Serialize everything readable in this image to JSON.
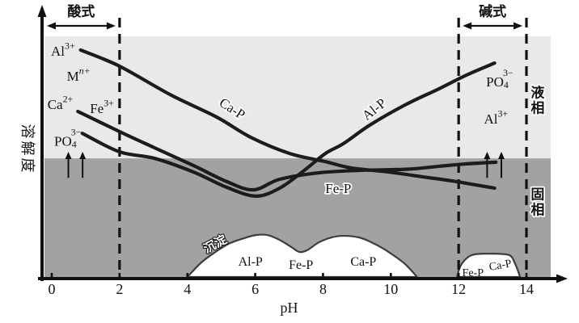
{
  "figure": {
    "description": "Solubility of phosphate compounds (Ca-P, Al-P, Fe-P) versus pH, showing liquid phase, solid phase and precipitation regions"
  },
  "axes": {
    "x_label": "pH",
    "y_label": "溶解度",
    "x_ticks": [
      0,
      2,
      4,
      6,
      8,
      10,
      12,
      14
    ]
  },
  "zones": {
    "acid_label": "酸式",
    "base_label": "碱式",
    "liquid_phase_label": "液相",
    "solid_phase_label": "固相",
    "precipitate_label": "沉淀"
  },
  "chart_data": {
    "type": "line",
    "xlabel": "pH",
    "ylabel": "溶解度 (relative solubility, arbitrary units 0–100)",
    "x_range": [
      0,
      14
    ],
    "x_ticks": [
      0,
      2,
      4,
      6,
      8,
      10,
      12,
      14
    ],
    "grid": false,
    "legend_position": "labels-on-curves",
    "phase_boundary_solubility": 49.3,
    "dashed_guides_ph": [
      2,
      12,
      14
    ],
    "series": [
      {
        "name": "Ca-P",
        "points": [
          [
            0.85,
            94.3
          ],
          [
            2.0,
            87.6
          ],
          [
            3.49,
            75.8
          ],
          [
            4.87,
            66.4
          ],
          [
            5.86,
            58.1
          ],
          [
            7.02,
            51.3
          ],
          [
            8.05,
            48.0
          ],
          [
            8.83,
            45.3
          ],
          [
            9.95,
            43.6
          ],
          [
            10.95,
            41.6
          ],
          [
            11.81,
            39.9
          ],
          [
            13.06,
            36.9
          ]
        ]
      },
      {
        "name": "Al-P",
        "points": [
          [
            0.9,
            59.7
          ],
          [
            2.0,
            52.0
          ],
          [
            3.03,
            49.3
          ],
          [
            4.18,
            43.6
          ],
          [
            5.17,
            37.2
          ],
          [
            6.02,
            33.6
          ],
          [
            6.72,
            36.9
          ],
          [
            7.42,
            44.0
          ],
          [
            8.07,
            51.3
          ],
          [
            8.6,
            55.4
          ],
          [
            9.38,
            63.1
          ],
          [
            10.42,
            71.5
          ],
          [
            11.42,
            78.2
          ],
          [
            12.23,
            83.9
          ],
          [
            13.06,
            88.9
          ]
        ]
      },
      {
        "name": "Fe-P",
        "points": [
          [
            0.77,
            68.8
          ],
          [
            2.0,
            60.4
          ],
          [
            3.03,
            53.7
          ],
          [
            4.18,
            46.3
          ],
          [
            5.17,
            39.6
          ],
          [
            5.95,
            36.2
          ],
          [
            6.72,
            40.6
          ],
          [
            7.88,
            43.3
          ],
          [
            9.07,
            44.3
          ],
          [
            10.49,
            44.8
          ],
          [
            11.42,
            46.0
          ],
          [
            12.23,
            47.0
          ],
          [
            13.1,
            47.7
          ]
        ]
      }
    ],
    "precipitate_regions": [
      {
        "label": "Al-P / Fe-P / Ca-P precipitate mound, pH 4–10.8",
        "points": [
          [
            4.0,
            0
          ],
          [
            4.41,
            6.0
          ],
          [
            4.83,
            10.4
          ],
          [
            5.22,
            13.8
          ],
          [
            5.67,
            16.1
          ],
          [
            6.02,
            17.4
          ],
          [
            6.37,
            17.4
          ],
          [
            6.72,
            15.4
          ],
          [
            7.07,
            12.4
          ],
          [
            7.3,
            10.4
          ],
          [
            7.53,
            11.1
          ],
          [
            7.88,
            14.4
          ],
          [
            8.24,
            16.4
          ],
          [
            8.6,
            17.1
          ],
          [
            9.07,
            16.4
          ],
          [
            9.43,
            14.4
          ],
          [
            9.79,
            11.7
          ],
          [
            10.14,
            8.4
          ],
          [
            10.42,
            5.4
          ],
          [
            10.65,
            2.0
          ],
          [
            10.77,
            0
          ]
        ]
      },
      {
        "label": "Fe-P / Ca-P precipitate mound, pH 12–13.8",
        "points": [
          [
            11.95,
            0
          ],
          [
            12.05,
            4.4
          ],
          [
            12.23,
            7.7
          ],
          [
            12.47,
            9.4
          ],
          [
            12.93,
            9.7
          ],
          [
            13.4,
            9.4
          ],
          [
            13.56,
            8.4
          ],
          [
            13.65,
            6.0
          ],
          [
            13.74,
            3.0
          ],
          [
            13.81,
            0
          ]
        ]
      }
    ],
    "up_arrows": {
      "ph": [
        0.49,
        0.91,
        12.84,
        13.26
      ],
      "s_from": 41.2,
      "s_to": 52.0
    }
  },
  "labels": [
    {
      "name": "ion-al3-left",
      "parts": [
        [
          "Al",
          ""
        ],
        [
          "3+",
          "sup"
        ]
      ],
      "ph": 0.33,
      "s": 94.0,
      "size": 17
    },
    {
      "name": "ion-mn-left",
      "parts": [
        [
          "M",
          ""
        ],
        [
          "n+",
          "supi"
        ]
      ],
      "ph": 0.79,
      "s": 83.6,
      "size": 17
    },
    {
      "name": "ion-ca2-left",
      "parts": [
        [
          "Ca",
          ""
        ],
        [
          "2+",
          "sup"
        ]
      ],
      "ph": 0.25,
      "s": 71.8,
      "size": 17
    },
    {
      "name": "ion-fe3-left",
      "parts": [
        [
          "Fe",
          ""
        ],
        [
          "3+",
          "sup"
        ]
      ],
      "ph": 1.48,
      "s": 70.1,
      "size": 17
    },
    {
      "name": "ion-po4-left",
      "parts": [
        [
          "PO",
          ""
        ],
        [
          "4",
          "sub"
        ],
        [
          "3−",
          "supover"
        ]
      ],
      "ph": 0.47,
      "s": 56.5,
      "size": 17
    },
    {
      "name": "curve-label-ca-p",
      "parts": [
        [
          "Ca-P",
          ""
        ]
      ],
      "ph": 5.33,
      "s": 70.1,
      "rot": 33,
      "size": 17,
      "cls": "halo"
    },
    {
      "name": "curve-label-al-p",
      "parts": [
        [
          "Al-P",
          ""
        ]
      ],
      "ph": 9.5,
      "s": 69.8,
      "rot": -38,
      "size": 17,
      "cls": "halo"
    },
    {
      "name": "curve-label-fe-p",
      "parts": [
        [
          "Fe-P",
          ""
        ]
      ],
      "ph": 8.45,
      "s": 36.9,
      "rot": 0,
      "size": 17,
      "cls": "halo"
    },
    {
      "name": "ion-po4-right",
      "parts": [
        [
          "PO",
          ""
        ],
        [
          "4",
          "sub"
        ],
        [
          "3−",
          "supover"
        ]
      ],
      "ph": 13.21,
      "s": 81.2,
      "size": 17
    },
    {
      "name": "ion-al3-right",
      "parts": [
        [
          "Al",
          ""
        ],
        [
          "3+",
          "sup"
        ]
      ],
      "ph": 13.1,
      "s": 65.8,
      "size": 17
    },
    {
      "name": "precipitate-label",
      "parts": [
        [
          "沉淀",
          ""
        ]
      ],
      "ph": 4.83,
      "s": 13.4,
      "rot": -28,
      "size": 15,
      "cls": "outline"
    },
    {
      "name": "blob-label-al-p",
      "parts": [
        [
          "Al-P",
          ""
        ]
      ],
      "ph": 5.86,
      "s": 6.4,
      "size": 16
    },
    {
      "name": "blob-label-fe-p",
      "parts": [
        [
          "Fe-P",
          ""
        ]
      ],
      "ph": 7.35,
      "s": 5.0,
      "size": 16
    },
    {
      "name": "blob-label-ca-p",
      "parts": [
        [
          "Ca-P",
          ""
        ]
      ],
      "ph": 9.19,
      "s": 6.4,
      "size": 16
    },
    {
      "name": "blob2-label-fe-p",
      "parts": [
        [
          "Fe-P",
          ""
        ]
      ],
      "ph": 12.42,
      "s": 1.6,
      "size": 14
    },
    {
      "name": "blob2-label-ca-p",
      "parts": [
        [
          "Ca-P",
          ""
        ]
      ],
      "ph": 13.23,
      "s": 4.8,
      "rot": -10,
      "size": 14
    },
    {
      "name": "phase-label-liquid",
      "parts": [
        [
          "液相",
          ""
        ]
      ],
      "ph": 14.33,
      "s": 73.5,
      "size": 17,
      "vertical": true,
      "cls": "halo"
    },
    {
      "name": "phase-label-solid",
      "parts": [
        [
          "固相",
          ""
        ]
      ],
      "ph": 14.33,
      "s": 31.2,
      "size": 17,
      "vertical": true,
      "cls": "halo"
    }
  ],
  "colors": {
    "liquid_region": "#e9e9e9",
    "solid_region": "#a2a2a2",
    "curve": "#1c1c1c",
    "dashed_line": "#111111",
    "precipitate_fill": "#ffffff",
    "precipitate_outline": "#3d3d3d",
    "text": "#121212",
    "axis": "#111111"
  }
}
